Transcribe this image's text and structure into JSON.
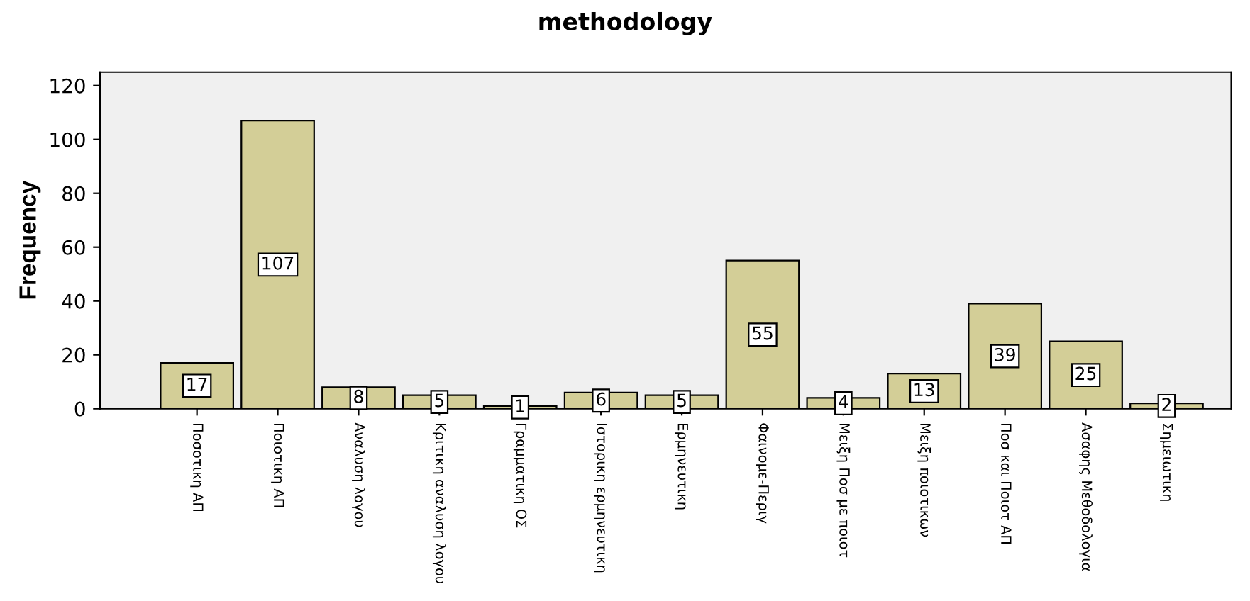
{
  "chart_data": {
    "type": "bar",
    "title": "methodology",
    "ylabel": "Frequency",
    "categories": [
      "Ποσοτικη ΑΠ",
      "Ποιοτικη ΑΠ",
      "Αναλυση λογου",
      "Κριτικη αναλυση λογου",
      "Γραμματικη ΟΣ",
      "Ιστορικη ερμηνευτικη",
      "Ερμηνευτικη",
      "Φαινομε-Περιγ",
      "Μειξη Ποσ με ποιοτ",
      "Μειξη ποιοτικων",
      "Ποσ και Ποιοτ ΑΠ",
      "Ασαφης Μεθοδολογια",
      "Σημειωτικη"
    ],
    "values": [
      17,
      107,
      8,
      5,
      1,
      6,
      5,
      55,
      4,
      13,
      39,
      25,
      2
    ],
    "color": "#d3ce97",
    "data_labels": true,
    "ylim": [
      0,
      125
    ],
    "yticks": [
      0,
      20,
      40,
      60,
      80,
      100,
      120
    ],
    "grid": false,
    "legend": false
  }
}
